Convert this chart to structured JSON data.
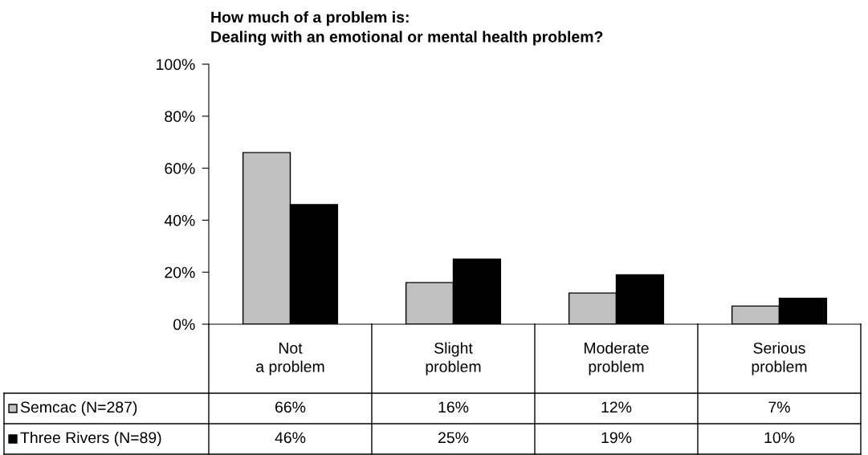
{
  "chart_data": {
    "type": "bar",
    "title": "How much of a problem is:\nDealing with an emotional or mental health problem?",
    "categories": [
      "Not\na problem",
      "Slight\nproblem",
      "Moderate\nproblem",
      "Serious\nproblem"
    ],
    "series": [
      {
        "name": "Semcac (N=287)",
        "color": "#c0c0c0",
        "values": [
          66,
          16,
          12,
          7
        ],
        "value_labels": [
          "66%",
          "16%",
          "12%",
          "7%"
        ]
      },
      {
        "name": "Three Rivers (N=89)",
        "color": "#000000",
        "values": [
          46,
          25,
          19,
          10
        ],
        "value_labels": [
          "46%",
          "25%",
          "19%",
          "10%"
        ]
      }
    ],
    "ylim": [
      0,
      100
    ],
    "yticks": [
      {
        "value": 0,
        "label": "0%"
      },
      {
        "value": 20,
        "label": "20%"
      },
      {
        "value": 40,
        "label": "40%"
      },
      {
        "value": 60,
        "label": "60%"
      },
      {
        "value": 80,
        "label": "80%"
      },
      {
        "value": 100,
        "label": "100%"
      }
    ],
    "grid": false,
    "legend": "bottom"
  }
}
